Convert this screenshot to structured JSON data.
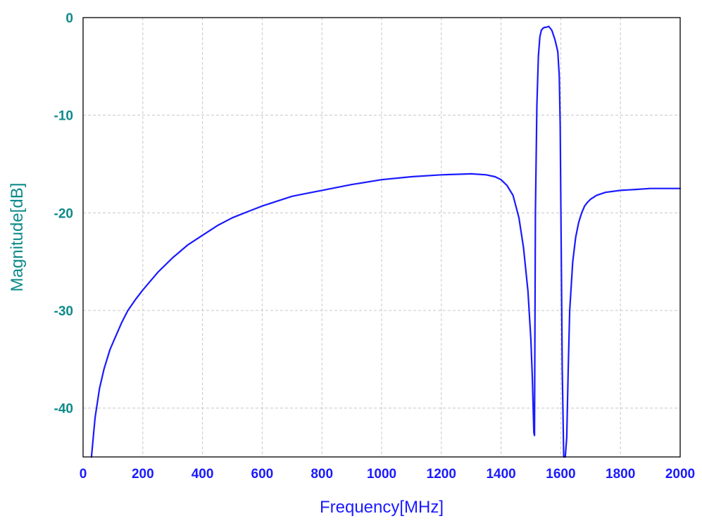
{
  "colors": {
    "series": "#1a1aff",
    "tick_labels_x": "#1a1aff",
    "tick_labels_y": "#0e8a8a",
    "xlabel": "#1a1aff",
    "ylabel": "#0e8a8a",
    "grid": "#c8c8c8",
    "frame": "#000000"
  },
  "chart_data": {
    "type": "line",
    "title": "",
    "xlabel": "Frequency[MHz]",
    "ylabel": "Magnitude[dB]",
    "xlim": [
      0,
      2000
    ],
    "ylim": [
      -45,
      0
    ],
    "grid": true,
    "legend": "none",
    "x_ticks": [
      0,
      200,
      400,
      600,
      800,
      1000,
      1200,
      1400,
      1600,
      1800,
      2000
    ],
    "y_ticks": [
      0,
      -10,
      -20,
      -30,
      -40
    ],
    "series": [
      {
        "x": [
          28,
          40,
          55,
          70,
          90,
          110,
          130,
          150,
          175,
          200,
          250,
          300,
          350,
          400,
          450,
          500,
          550,
          600,
          650,
          700,
          750,
          800,
          900,
          1000,
          1100,
          1200,
          1250,
          1300,
          1350,
          1380,
          1400,
          1420,
          1440,
          1460,
          1475,
          1490,
          1500,
          1505,
          1510,
          1512,
          1515,
          1520,
          1525,
          1530,
          1535,
          1540,
          1545,
          1550,
          1560,
          1570,
          1580,
          1585,
          1590,
          1595,
          1598,
          1600,
          1605,
          1610,
          1615,
          1620,
          1625,
          1630,
          1640,
          1650,
          1660,
          1670,
          1680,
          1690,
          1700,
          1720,
          1750,
          1800,
          1850,
          1900,
          1950,
          2000
        ],
        "y": [
          -45,
          -41,
          -38,
          -36,
          -34,
          -32.6,
          -31.2,
          -30,
          -28.9,
          -27.9,
          -26.1,
          -24.6,
          -23.3,
          -22.3,
          -21.3,
          -20.5,
          -19.9,
          -19.3,
          -18.8,
          -18.3,
          -18,
          -17.7,
          -17.1,
          -16.6,
          -16.3,
          -16.1,
          -16.05,
          -16,
          -16.1,
          -16.3,
          -16.6,
          -17.2,
          -18.2,
          -20.5,
          -23.5,
          -28,
          -33,
          -37,
          -42.5,
          -42.8,
          -20,
          -9,
          -4,
          -2,
          -1.3,
          -1.1,
          -1,
          -1,
          -0.9,
          -1.3,
          -2.2,
          -2.8,
          -3.5,
          -6,
          -11,
          -18,
          -36,
          -45,
          -45,
          -43,
          -36,
          -30,
          -25,
          -22.5,
          -21,
          -20,
          -19.3,
          -18.9,
          -18.6,
          -18.2,
          -17.9,
          -17.7,
          -17.6,
          -17.5,
          -17.5,
          -17.5
        ]
      }
    ]
  }
}
